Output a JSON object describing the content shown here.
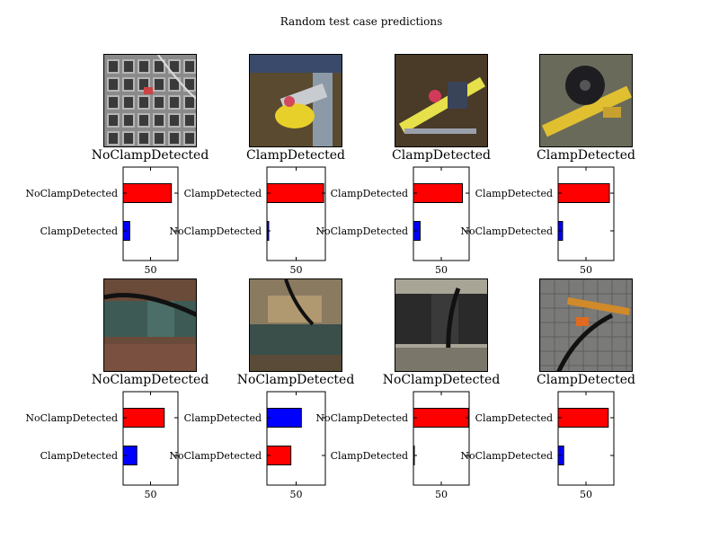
{
  "figure": {
    "title": "Random test case predictions"
  },
  "chart_data": {
    "type": "bar",
    "title": "Random test case predictions",
    "orientation": "horizontal",
    "colors": {
      "top_bar": "#ff0000",
      "bottom_bar_default": "#0000ff"
    },
    "panels": [
      {
        "image_label": "NoClampDetected",
        "image_theme": "grated-metal-floor",
        "categories": [
          "NoClampDetected",
          "ClampDetected"
        ],
        "values": [
          88,
          12
        ],
        "colors": [
          "#ff0000",
          "#0000ff"
        ],
        "xticks": [
          50
        ],
        "xlim": [
          0,
          100
        ]
      },
      {
        "image_label": "ClampDetected",
        "image_theme": "yellow-clamp-on-pipe",
        "categories": [
          "ClampDetected",
          "NoClampDetected"
        ],
        "values": [
          97,
          3
        ],
        "colors": [
          "#ff0000",
          "#0000ff"
        ],
        "xticks": [
          50
        ],
        "xlim": [
          0,
          100
        ]
      },
      {
        "image_label": "ClampDetected",
        "image_theme": "yellow-clamp-in-trench",
        "categories": [
          "ClampDetected",
          "NoClampDetected"
        ],
        "values": [
          88,
          12
        ],
        "colors": [
          "#ff0000",
          "#0000ff"
        ],
        "xticks": [
          50
        ],
        "xlim": [
          0,
          100
        ]
      },
      {
        "image_label": "ClampDetected",
        "image_theme": "black-valve-yellow-pipe",
        "categories": [
          "ClampDetected",
          "NoClampDetected"
        ],
        "values": [
          92,
          8
        ],
        "colors": [
          "#ff0000",
          "#0000ff"
        ],
        "xticks": [
          50
        ],
        "xlim": [
          0,
          100
        ]
      },
      {
        "image_label": "NoClampDetected",
        "image_theme": "green-pipe-rusty-floor",
        "categories": [
          "NoClampDetected",
          "ClampDetected"
        ],
        "values": [
          75,
          25
        ],
        "colors": [
          "#ff0000",
          "#0000ff"
        ],
        "xticks": [
          50
        ],
        "xlim": [
          0,
          100
        ]
      },
      {
        "image_label": "NoClampDetected",
        "image_theme": "green-pipe-workbench",
        "categories": [
          "ClampDetected",
          "NoClampDetected"
        ],
        "values": [
          59,
          41
        ],
        "colors": [
          "#0000ff",
          "#ff0000"
        ],
        "xticks": [
          50
        ],
        "xlim": [
          0,
          100
        ]
      },
      {
        "image_label": "NoClampDetected",
        "image_theme": "black-pipe-closeup",
        "categories": [
          "NoClampDetected",
          "ClampDetected"
        ],
        "values": [
          99,
          1
        ],
        "colors": [
          "#ff0000",
          "#0000ff"
        ],
        "xticks": [
          50
        ],
        "xlim": [
          0,
          100
        ]
      },
      {
        "image_label": "ClampDetected",
        "image_theme": "orange-clamp-tiled-floor",
        "categories": [
          "ClampDetected",
          "NoClampDetected"
        ],
        "values": [
          90,
          10
        ],
        "colors": [
          "#ff0000",
          "#0000ff"
        ],
        "xticks": [
          50
        ],
        "xlim": [
          0,
          100
        ]
      }
    ]
  }
}
